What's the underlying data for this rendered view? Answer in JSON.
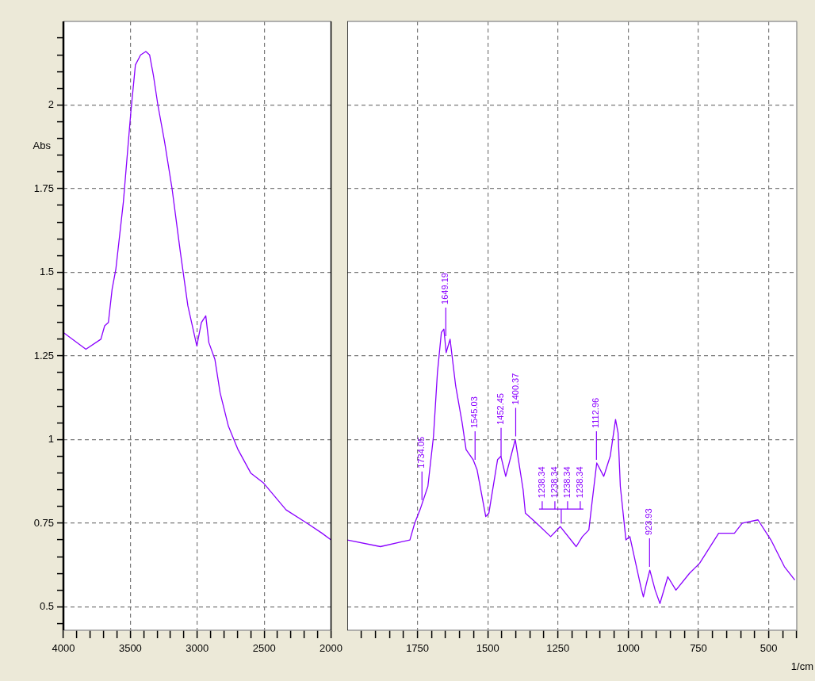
{
  "chart_data": [
    {
      "type": "line",
      "ylabel": "Abs",
      "xlim": [
        4000,
        2000
      ],
      "ylim": [
        0.43,
        2.25
      ],
      "xticks": [
        4000,
        {
          "value": 3900,
          "label": null
        },
        {
          "value": 3800,
          "label": null
        },
        {
          "value": 3700,
          "label": null
        },
        {
          "value": 3600,
          "label": null
        },
        3500,
        {
          "value": 3400,
          "label": null
        },
        {
          "value": 3300,
          "label": null
        },
        {
          "value": 3200,
          "label": null
        },
        {
          "value": 3100,
          "label": null
        },
        3000,
        {
          "value": 2900,
          "label": null
        },
        {
          "value": 2800,
          "label": null
        },
        {
          "value": 2700,
          "label": null
        },
        {
          "value": 2600,
          "label": null
        },
        2500,
        {
          "value": 2400,
          "label": null
        },
        {
          "value": 2300,
          "label": null
        },
        {
          "value": 2200,
          "label": null
        },
        {
          "value": 2100,
          "label": null
        },
        2000
      ],
      "yticks": [
        {
          "value": 0.45,
          "label": null
        },
        0.5,
        {
          "value": 0.55,
          "label": null
        },
        {
          "value": 0.6,
          "label": null
        },
        {
          "value": 0.65,
          "label": null
        },
        {
          "value": 0.7,
          "label": null
        },
        0.75,
        {
          "value": 0.8,
          "label": null
        },
        {
          "value": 0.85,
          "label": null
        },
        {
          "value": 0.9,
          "label": null
        },
        {
          "value": 0.95,
          "label": null
        },
        1,
        {
          "value": 1.05,
          "label": null
        },
        {
          "value": 1.1,
          "label": null
        },
        {
          "value": 1.15,
          "label": null
        },
        {
          "value": 1.2,
          "label": null
        },
        1.25,
        {
          "value": 1.3,
          "label": null
        },
        {
          "value": 1.35,
          "label": null
        },
        {
          "value": 1.4,
          "label": null
        },
        {
          "value": 1.45,
          "label": null
        },
        1.5,
        {
          "value": 1.55,
          "label": null
        },
        {
          "value": 1.6,
          "label": null
        },
        {
          "value": 1.65,
          "label": null
        },
        {
          "value": 1.7,
          "label": null
        },
        1.75,
        {
          "value": 1.8,
          "label": null
        },
        {
          "value": 1.85,
          "label": null
        },
        {
          "value": 1.9,
          "label": null
        },
        {
          "value": 1.95,
          "label": null
        },
        2,
        {
          "value": 2.05,
          "label": null
        },
        {
          "value": 2.1,
          "label": null
        },
        {
          "value": 2.15,
          "label": null
        },
        {
          "value": 2.2,
          "label": null
        }
      ],
      "grid": true,
      "marker": "none",
      "series": [
        {
          "color": "#8a00ff",
          "x": [
            4000,
            3832,
            3720,
            3692,
            3664,
            3636,
            3608,
            3552,
            3496,
            3462,
            3423,
            3384,
            3356,
            3328,
            3294,
            3244,
            3188,
            3126,
            3070,
            3003,
            2969,
            2936,
            2913,
            2868,
            2829,
            2767,
            2695,
            2600,
            2504,
            2336,
            2179,
            2067,
            2000
          ],
          "values": [
            1.32,
            1.27,
            1.3,
            1.34,
            1.35,
            1.45,
            1.51,
            1.71,
            1.98,
            2.12,
            2.15,
            2.16,
            2.15,
            2.09,
            2.0,
            1.89,
            1.75,
            1.56,
            1.4,
            1.28,
            1.35,
            1.37,
            1.29,
            1.24,
            1.14,
            1.04,
            0.97,
            0.9,
            0.87,
            0.79,
            0.75,
            0.72,
            0.7
          ]
        }
      ]
    },
    {
      "type": "line",
      "xlabel": "1/cm",
      "xlim": [
        2000,
        400
      ],
      "ylim": [
        0.43,
        2.25
      ],
      "xticks": [
        {
          "value": 1950,
          "label": null
        },
        {
          "value": 1900,
          "label": null
        },
        {
          "value": 1850,
          "label": null
        },
        {
          "value": 1800,
          "label": null
        },
        1750,
        {
          "value": 1700,
          "label": null
        },
        {
          "value": 1650,
          "label": null
        },
        {
          "value": 1600,
          "label": null
        },
        {
          "value": 1550,
          "label": null
        },
        1500,
        {
          "value": 1450,
          "label": null
        },
        {
          "value": 1400,
          "label": null
        },
        {
          "value": 1350,
          "label": null
        },
        {
          "value": 1300,
          "label": null
        },
        1250,
        {
          "value": 1200,
          "label": null
        },
        {
          "value": 1150,
          "label": null
        },
        {
          "value": 1100,
          "label": null
        },
        {
          "value": 1050,
          "label": null
        },
        1000,
        {
          "value": 950,
          "label": null
        },
        {
          "value": 900,
          "label": null
        },
        {
          "value": 850,
          "label": null
        },
        {
          "value": 800,
          "label": null
        },
        750,
        {
          "value": 700,
          "label": null
        },
        {
          "value": 650,
          "label": null
        },
        {
          "value": 600,
          "label": null
        },
        {
          "value": 550,
          "label": null
        },
        500,
        {
          "value": 450,
          "label": null
        },
        {
          "value": 400,
          "label": null
        }
      ],
      "yticks": [
        0.5,
        0.75,
        1,
        1.25,
        1.5,
        1.75,
        2
      ],
      "tick_labels": "x",
      "grid": true,
      "marker": "none",
      "series": [
        {
          "color": "#8a00ff",
          "x": [
            2000,
            1882,
            1777,
            1760,
            1741,
            1713,
            1693,
            1679,
            1665,
            1656,
            1648,
            1634,
            1614,
            1591,
            1577,
            1552,
            1538,
            1507,
            1496,
            1465,
            1453,
            1436,
            1402,
            1374,
            1366,
            1326,
            1276,
            1242,
            1185,
            1163,
            1140,
            1129,
            1112,
            1087,
            1064,
            1045,
            1036,
            1028,
            1008,
            994,
            955,
            946,
            935,
            923,
            904,
            887,
            859,
            830,
            782,
            746,
            678,
            622,
            594,
            538,
            492,
            444,
            407
          ],
          "values": [
            0.7,
            0.68,
            0.7,
            0.75,
            0.79,
            0.86,
            1.01,
            1.2,
            1.32,
            1.33,
            1.26,
            1.3,
            1.16,
            1.05,
            0.97,
            0.94,
            0.91,
            0.77,
            0.78,
            0.94,
            0.95,
            0.89,
            1.0,
            0.85,
            0.78,
            0.75,
            0.71,
            0.74,
            0.68,
            0.71,
            0.73,
            0.81,
            0.93,
            0.89,
            0.95,
            1.06,
            1.02,
            0.86,
            0.7,
            0.71,
            0.56,
            0.53,
            0.57,
            0.61,
            0.55,
            0.51,
            0.59,
            0.55,
            0.6,
            0.63,
            0.72,
            0.72,
            0.75,
            0.76,
            0.7,
            0.62,
            0.58
          ]
        }
      ],
      "annotations": [
        {
          "text": "1734.05",
          "x": 1734.05,
          "y": 0.81
        },
        {
          "text": "1649.19",
          "x": 1649.19,
          "y": 1.3
        },
        {
          "text": "1545.03",
          "x": 1545.03,
          "y": 0.93
        },
        {
          "text": "1452.45",
          "x": 1452.45,
          "y": 0.94
        },
        {
          "text": "1400.37",
          "x": 1400.37,
          "y": 1.0
        },
        {
          "text": "1238.34",
          "x": 1238.34,
          "y": 0.74
        },
        "1238.34",
        "1238.34",
        "1238.34",
        {
          "text": "1112.96",
          "x": 1112.96,
          "y": 0.93
        },
        {
          "text": "923.93",
          "x": 923.93,
          "y": 0.61
        }
      ]
    }
  ]
}
